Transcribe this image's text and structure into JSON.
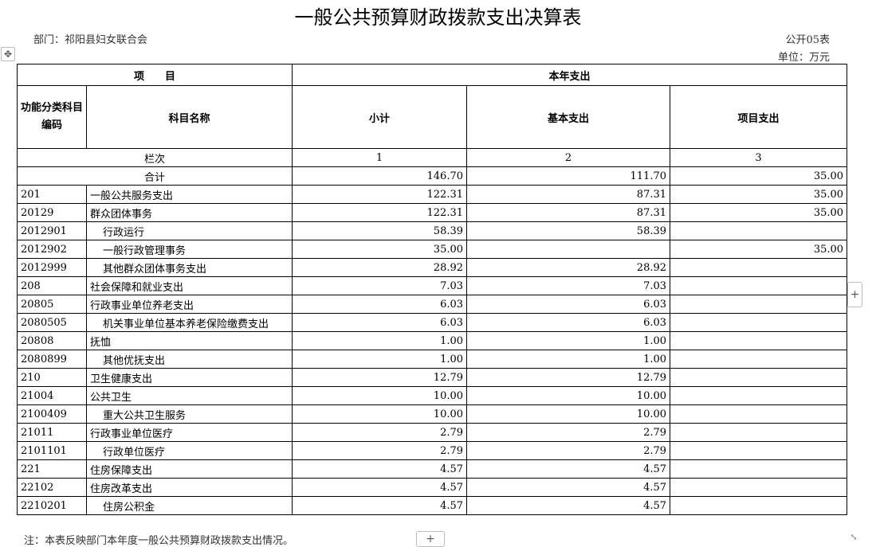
{
  "title": "一般公共预算财政拨款支出决算表",
  "department": "部门：祁阳县妇女联合会",
  "table_no": "公开05表",
  "unit": "单位：万元",
  "headers": {
    "item": "项　　目",
    "current_year": "本年支出",
    "code": "功能分类科目编码",
    "name": "科目名称",
    "subtotal": "小计",
    "basic": "基本支出",
    "project": "项目支出",
    "column_label": "栏次",
    "col1": "1",
    "col2": "2",
    "col3": "3"
  },
  "total": {
    "label": "合计",
    "subtotal": "146.70",
    "basic": "111.70",
    "project": "35.00"
  },
  "rows": [
    {
      "code": "201",
      "name": "一般公共服务支出",
      "subtotal": "122.31",
      "basic": "87.31",
      "project": "35.00",
      "indent": false
    },
    {
      "code": "20129",
      "name": "群众团体事务",
      "subtotal": "122.31",
      "basic": "87.31",
      "project": "35.00",
      "indent": false
    },
    {
      "code": "2012901",
      "name": "行政运行",
      "subtotal": "58.39",
      "basic": "58.39",
      "project": "",
      "indent": true
    },
    {
      "code": "2012902",
      "name": "一般行政管理事务",
      "subtotal": "35.00",
      "basic": "",
      "project": "35.00",
      "indent": true
    },
    {
      "code": "2012999",
      "name": "其他群众团体事务支出",
      "subtotal": "28.92",
      "basic": "28.92",
      "project": "",
      "indent": true
    },
    {
      "code": "208",
      "name": "社会保障和就业支出",
      "subtotal": "7.03",
      "basic": "7.03",
      "project": "",
      "indent": false
    },
    {
      "code": "20805",
      "name": "行政事业单位养老支出",
      "subtotal": "6.03",
      "basic": "6.03",
      "project": "",
      "indent": false
    },
    {
      "code": "2080505",
      "name": "机关事业单位基本养老保险缴费支出",
      "subtotal": "6.03",
      "basic": "6.03",
      "project": "",
      "indent": true
    },
    {
      "code": "20808",
      "name": "抚恤",
      "subtotal": "1.00",
      "basic": "1.00",
      "project": "",
      "indent": false
    },
    {
      "code": "2080899",
      "name": "其他优抚支出",
      "subtotal": "1.00",
      "basic": "1.00",
      "project": "",
      "indent": true
    },
    {
      "code": "210",
      "name": "卫生健康支出",
      "subtotal": "12.79",
      "basic": "12.79",
      "project": "",
      "indent": false
    },
    {
      "code": "21004",
      "name": "公共卫生",
      "subtotal": "10.00",
      "basic": "10.00",
      "project": "",
      "indent": false
    },
    {
      "code": "2100409",
      "name": "重大公共卫生服务",
      "subtotal": "10.00",
      "basic": "10.00",
      "project": "",
      "indent": true
    },
    {
      "code": "21011",
      "name": "行政事业单位医疗",
      "subtotal": "2.79",
      "basic": "2.79",
      "project": "",
      "indent": false
    },
    {
      "code": "2101101",
      "name": "行政单位医疗",
      "subtotal": "2.79",
      "basic": "2.79",
      "project": "",
      "indent": true
    },
    {
      "code": "221",
      "name": "住房保障支出",
      "subtotal": "4.57",
      "basic": "4.57",
      "project": "",
      "indent": false
    },
    {
      "code": "22102",
      "name": "住房改革支出",
      "subtotal": "4.57",
      "basic": "4.57",
      "project": "",
      "indent": false
    },
    {
      "code": "2210201",
      "name": "住房公积金",
      "subtotal": "4.57",
      "basic": "4.57",
      "project": "",
      "indent": true
    }
  ],
  "note": "注：本表反映部门本年度一般公共预算财政拨款支出情况。",
  "icons": {
    "move": "move-icon",
    "add_column": "plus-icon",
    "add_row": "plus-icon",
    "resize": "resize-icon"
  }
}
